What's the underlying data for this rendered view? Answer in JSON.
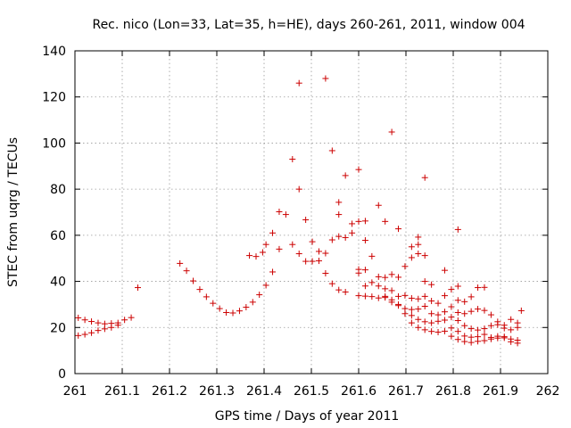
{
  "chart_data": {
    "type": "scatter",
    "title": "Rec. nico (Lon=33, Lat=35, h=HE), days 260-261, 2011, window 004",
    "xlabel": "GPS time / Days of year 2011",
    "ylabel": "STEC from uqrg / TECUs",
    "xlim": [
      261,
      262
    ],
    "ylim": [
      0,
      140
    ],
    "xticks": [
      "261",
      "261.1",
      "261.2",
      "261.3",
      "261.4",
      "261.5",
      "261.6",
      "261.7",
      "261.8",
      "261.9",
      "262"
    ],
    "yticks": [
      "0",
      "20",
      "40",
      "60",
      "80",
      "100",
      "120",
      "140"
    ],
    "grid": true,
    "marker": "+",
    "color": "#cc0000",
    "points": [
      [
        261.007,
        24.2
      ],
      [
        261.021,
        23.3
      ],
      [
        261.035,
        22.6
      ],
      [
        261.049,
        22.0
      ],
      [
        261.063,
        21.6
      ],
      [
        261.077,
        21.8
      ],
      [
        261.091,
        22.0
      ],
      [
        261.105,
        23.3
      ],
      [
        261.007,
        16.5
      ],
      [
        261.021,
        17.0
      ],
      [
        261.035,
        17.7
      ],
      [
        261.049,
        18.7
      ],
      [
        261.063,
        19.4
      ],
      [
        261.077,
        20.0
      ],
      [
        261.091,
        21.0
      ],
      [
        261.119,
        24.3
      ],
      [
        261.133,
        37.3
      ],
      [
        261.222,
        47.8
      ],
      [
        261.236,
        44.6
      ],
      [
        261.25,
        40.2
      ],
      [
        261.264,
        36.5
      ],
      [
        261.278,
        33.3
      ],
      [
        261.292,
        30.5
      ],
      [
        261.306,
        28.2
      ],
      [
        261.32,
        26.5
      ],
      [
        261.334,
        26.3
      ],
      [
        261.348,
        27.2
      ],
      [
        261.362,
        28.8
      ],
      [
        261.376,
        31.0
      ],
      [
        261.39,
        34.2
      ],
      [
        261.404,
        38.3
      ],
      [
        261.418,
        44.1
      ],
      [
        261.369,
        51.2
      ],
      [
        261.383,
        50.8
      ],
      [
        261.397,
        52.6
      ],
      [
        261.404,
        56.0
      ],
      [
        261.418,
        61.0
      ],
      [
        261.432,
        70.2
      ],
      [
        261.446,
        69.0
      ],
      [
        261.432,
        54.0
      ],
      [
        261.46,
        56.0
      ],
      [
        261.474,
        52.0
      ],
      [
        261.488,
        48.7
      ],
      [
        261.502,
        48.7
      ],
      [
        261.516,
        48.9
      ],
      [
        261.53,
        52.2
      ],
      [
        261.544,
        58.0
      ],
      [
        261.558,
        59.5
      ],
      [
        261.572,
        59.0
      ],
      [
        261.586,
        61.0
      ],
      [
        261.474,
        80.0
      ],
      [
        261.46,
        93.0
      ],
      [
        261.474,
        126.0
      ],
      [
        261.488,
        66.7
      ],
      [
        261.502,
        57.2
      ],
      [
        261.53,
        128.0
      ],
      [
        261.544,
        96.7
      ],
      [
        261.558,
        74.3
      ],
      [
        261.558,
        69.0
      ],
      [
        261.572,
        85.9
      ],
      [
        261.586,
        65.0
      ],
      [
        261.6,
        88.5
      ],
      [
        261.6,
        66.0
      ],
      [
        261.614,
        66.2
      ],
      [
        261.614,
        57.8
      ],
      [
        261.642,
        73.0
      ],
      [
        261.656,
        66.0
      ],
      [
        261.67,
        104.8
      ],
      [
        261.684,
        62.8
      ],
      [
        261.712,
        50.3
      ],
      [
        261.726,
        59.2
      ],
      [
        261.726,
        56.0
      ],
      [
        261.74,
        51.2
      ],
      [
        261.74,
        85.0
      ],
      [
        261.712,
        55.0
      ],
      [
        261.726,
        52.0
      ],
      [
        261.516,
        53.0
      ],
      [
        261.53,
        43.5
      ],
      [
        261.544,
        39.0
      ],
      [
        261.558,
        36.3
      ],
      [
        261.572,
        35.4
      ],
      [
        261.6,
        45.2
      ],
      [
        261.6,
        43.6
      ],
      [
        261.6,
        33.8
      ],
      [
        261.614,
        33.6
      ],
      [
        261.614,
        45.0
      ],
      [
        261.628,
        50.9
      ],
      [
        261.628,
        33.4
      ],
      [
        261.642,
        32.8
      ],
      [
        261.642,
        42.0
      ],
      [
        261.656,
        41.7
      ],
      [
        261.656,
        36.8
      ],
      [
        261.67,
        36.0
      ],
      [
        261.67,
        43.0
      ],
      [
        261.684,
        41.8
      ],
      [
        261.684,
        33.5
      ],
      [
        261.698,
        46.5
      ],
      [
        261.698,
        33.9
      ],
      [
        261.712,
        32.7
      ],
      [
        261.726,
        32.4
      ],
      [
        261.74,
        33.5
      ],
      [
        261.74,
        40.0
      ],
      [
        261.754,
        38.6
      ],
      [
        261.754,
        31.5
      ],
      [
        261.768,
        30.5
      ],
      [
        261.782,
        44.8
      ],
      [
        261.782,
        33.8
      ],
      [
        261.796,
        36.5
      ],
      [
        261.81,
        62.5
      ],
      [
        261.81,
        37.9
      ],
      [
        261.81,
        31.8
      ],
      [
        261.824,
        31.2
      ],
      [
        261.838,
        33.3
      ],
      [
        261.852,
        37.3
      ],
      [
        261.866,
        37.4
      ],
      [
        261.614,
        38.0
      ],
      [
        261.628,
        39.5
      ],
      [
        261.642,
        38.0
      ],
      [
        261.656,
        33.5
      ],
      [
        261.67,
        32.0
      ],
      [
        261.684,
        30.0
      ],
      [
        261.698,
        28.2
      ],
      [
        261.712,
        27.8
      ],
      [
        261.726,
        28.0
      ],
      [
        261.74,
        29.2
      ],
      [
        261.754,
        26.0
      ],
      [
        261.768,
        25.5
      ],
      [
        261.782,
        26.8
      ],
      [
        261.796,
        29.0
      ],
      [
        261.81,
        26.5
      ],
      [
        261.824,
        26.0
      ],
      [
        261.838,
        27.0
      ],
      [
        261.852,
        28.0
      ],
      [
        261.866,
        27.4
      ],
      [
        261.88,
        25.5
      ],
      [
        261.894,
        22.5
      ],
      [
        261.908,
        21.0
      ],
      [
        261.922,
        23.5
      ],
      [
        261.936,
        22.0
      ],
      [
        261.944,
        27.3
      ],
      [
        261.656,
        33.0
      ],
      [
        261.67,
        31.0
      ],
      [
        261.684,
        29.5
      ],
      [
        261.698,
        26.0
      ],
      [
        261.712,
        25.2
      ],
      [
        261.726,
        23.5
      ],
      [
        261.74,
        22.5
      ],
      [
        261.754,
        22.0
      ],
      [
        261.768,
        22.7
      ],
      [
        261.782,
        23.2
      ],
      [
        261.796,
        24.5
      ],
      [
        261.81,
        23.0
      ],
      [
        261.824,
        20.8
      ],
      [
        261.838,
        19.5
      ],
      [
        261.852,
        18.9
      ],
      [
        261.866,
        19.5
      ],
      [
        261.88,
        20.8
      ],
      [
        261.894,
        21.2
      ],
      [
        261.908,
        19.7
      ],
      [
        261.922,
        19.0
      ],
      [
        261.936,
        20.0
      ],
      [
        261.712,
        22.0
      ],
      [
        261.726,
        20.0
      ],
      [
        261.74,
        19.0
      ],
      [
        261.754,
        18.3
      ],
      [
        261.768,
        18.0
      ],
      [
        261.782,
        18.4
      ],
      [
        261.796,
        19.8
      ],
      [
        261.81,
        18.3
      ],
      [
        261.824,
        16.3
      ],
      [
        261.838,
        15.8
      ],
      [
        261.852,
        16.0
      ],
      [
        261.866,
        17.0
      ],
      [
        261.88,
        15.7
      ],
      [
        261.894,
        15.4
      ],
      [
        261.908,
        16.0
      ],
      [
        261.922,
        15.0
      ],
      [
        261.936,
        14.5
      ],
      [
        261.796,
        16.2
      ],
      [
        261.81,
        14.8
      ],
      [
        261.824,
        13.9
      ],
      [
        261.838,
        13.5
      ],
      [
        261.852,
        14.0
      ],
      [
        261.866,
        14.3
      ],
      [
        261.88,
        15.0
      ],
      [
        261.894,
        16.2
      ],
      [
        261.908,
        15.5
      ],
      [
        261.922,
        13.8
      ],
      [
        261.936,
        13.2
      ]
    ]
  }
}
